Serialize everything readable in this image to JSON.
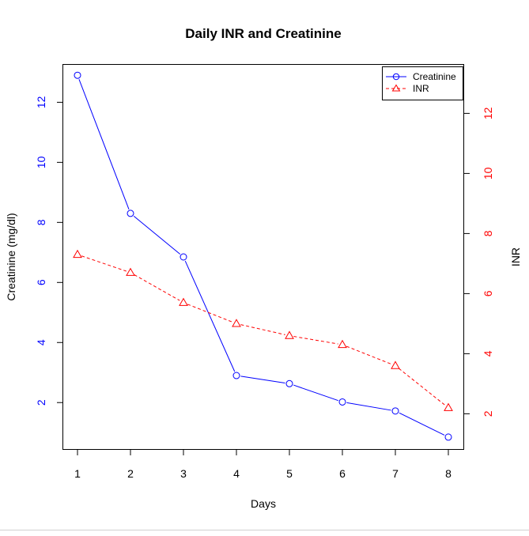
{
  "chart_data": {
    "type": "line",
    "title": "Daily INR and Creatinine",
    "xlabel": "Days",
    "ylabel": "Creatinine (mg/dl)",
    "y2label": "INR",
    "x": [
      1,
      2,
      3,
      4,
      5,
      6,
      7,
      8
    ],
    "xlim": [
      1,
      8
    ],
    "ylim": [
      0.9,
      12.8
    ],
    "y2lim": [
      1.3,
      13.3
    ],
    "xticks": [
      1,
      2,
      3,
      4,
      5,
      6,
      7,
      8
    ],
    "yticks": [
      2,
      4,
      6,
      8,
      10,
      12
    ],
    "y2ticks": [
      2,
      4,
      6,
      8,
      10,
      12
    ],
    "legend_position": "top-right",
    "series": [
      {
        "name": "Creatinine",
        "axis": "left",
        "color": "#0000ff",
        "line": "solid",
        "marker": "circle",
        "values": [
          12.9,
          8.3,
          6.85,
          2.9,
          2.63,
          2.02,
          1.72,
          0.85
        ]
      },
      {
        "name": "INR",
        "axis": "right",
        "color": "#ff0000",
        "line": "dashed",
        "marker": "triangle",
        "values": [
          7.3,
          6.7,
          5.7,
          5.0,
          4.6,
          4.3,
          3.6,
          2.2
        ]
      }
    ],
    "left_axis_color": "#0000ff",
    "right_axis_color": "#ff0000"
  }
}
